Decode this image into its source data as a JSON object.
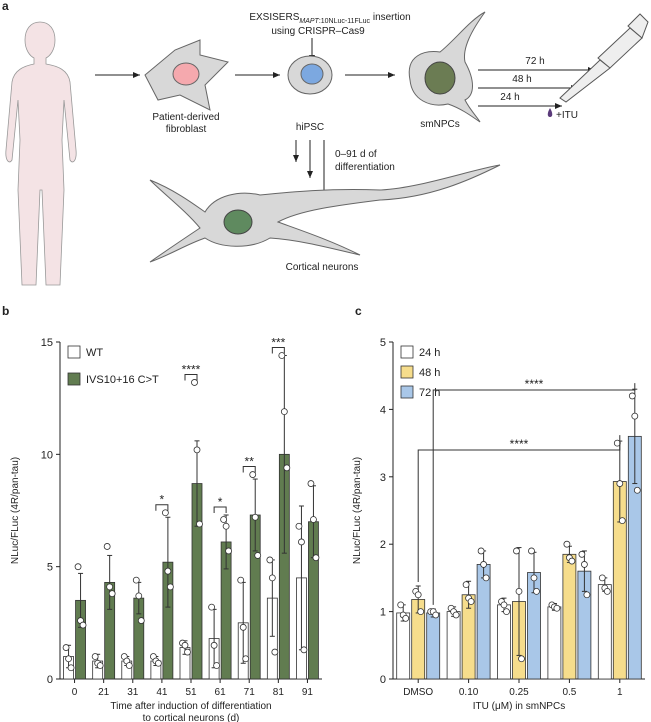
{
  "panel_labels": [
    "a",
    "b",
    "c"
  ],
  "diagram": {
    "insertion_label": {
      "main": "EXSISERS",
      "sub_italic": "MAPT",
      "sub": ":10NLuc-11FLuc",
      "rest": " insertion"
    },
    "method": "using CRISPR–Cas9",
    "fibroblast": [
      "Patient-derived",
      "fibroblast"
    ],
    "hipsc": "hiPSC",
    "smnpc": "smNPCs",
    "timepoints": [
      "72 h",
      "48 h",
      "24 h"
    ],
    "treatment": "+ITU",
    "differentiation": [
      "0–91 d of",
      "differentiation"
    ],
    "neurons": "Cortical neurons"
  },
  "chart_data": [
    {
      "type": "bar",
      "categories": [
        "0",
        "21",
        "31",
        "41",
        "51",
        "61",
        "71",
        "81",
        "91"
      ],
      "y_label": "NLuc/FLuc (4R/pan-tau)",
      "x_label": [
        "Time after induction of differentiation",
        "to cortical neurons (d)"
      ],
      "ylim": [
        0,
        15
      ],
      "yticks": [
        0,
        5,
        10,
        15
      ],
      "legend": "top-left",
      "series": [
        {
          "name": "WT",
          "color": "#ffffff",
          "values": [
            1.0,
            0.8,
            0.8,
            0.8,
            1.4,
            1.8,
            2.5,
            3.6,
            4.5
          ],
          "errors": [
            0.5,
            0.3,
            0.2,
            0.2,
            0.3,
            1.3,
            1.8,
            1.7,
            3.2
          ],
          "points": [
            [
              1.4,
              0.9,
              0.5
            ],
            [
              1.0,
              0.7,
              0.6
            ],
            [
              1.0,
              0.8,
              0.6
            ],
            [
              1.0,
              0.8,
              0.7
            ],
            [
              1.6,
              1.5,
              1.2
            ],
            [
              3.2,
              1.5,
              0.6
            ],
            [
              4.4,
              2.3,
              0.9
            ],
            [
              5.3,
              4.5,
              1.2
            ],
            [
              6.8,
              6.1,
              1.3
            ]
          ]
        },
        {
          "name": "IVS10+16 C>T",
          "color": "#617c50",
          "values": [
            3.5,
            4.3,
            3.6,
            5.2,
            8.7,
            6.1,
            7.3,
            10.0,
            7.0
          ],
          "errors": [
            1.2,
            1.2,
            0.7,
            2.0,
            1.9,
            1.2,
            1.6,
            4.4,
            1.6
          ],
          "points": [
            [
              5.0,
              2.6,
              2.4
            ],
            [
              5.9,
              4.1,
              3.8
            ],
            [
              4.4,
              3.7,
              2.6
            ],
            [
              7.4,
              4.8,
              4.1
            ],
            [
              13.2,
              10.2,
              6.9
            ],
            [
              7.1,
              6.8,
              5.7
            ],
            [
              9.1,
              7.2,
              5.5
            ],
            [
              14.4,
              11.9,
              9.4
            ],
            [
              8.7,
              7.1,
              5.4
            ]
          ]
        }
      ],
      "significance": [
        null,
        null,
        null,
        "*",
        "****",
        "*",
        "**",
        "***",
        null
      ]
    },
    {
      "type": "bar",
      "categories": [
        "DMSO",
        "0.10",
        "0.25",
        "0.5",
        "1"
      ],
      "y_label": "NLuc/FLuc (4R/pan-tau)",
      "x_label": [
        "ITU (μM) in smNPCs"
      ],
      "ylim": [
        0,
        5
      ],
      "yticks": [
        0,
        1,
        2,
        3,
        4,
        5
      ],
      "legend": "top-left",
      "series": [
        {
          "name": "24 h",
          "color": "#ffffff",
          "values": [
            0.98,
            1.0,
            1.1,
            1.07,
            1.4
          ],
          "errors": [
            0.12,
            0.07,
            0.1,
            0.05,
            0.1
          ],
          "points": [
            [
              1.1,
              0.95,
              0.9
            ],
            [
              1.05,
              1.0,
              0.95
            ],
            [
              1.15,
              1.1,
              1.0
            ],
            [
              1.1,
              1.07,
              1.05
            ],
            [
              1.5,
              1.35,
              1.3
            ]
          ]
        },
        {
          "name": "48 h",
          "color": "#f6dd8c",
          "values": [
            1.18,
            1.25,
            1.15,
            1.85,
            2.93
          ],
          "errors": [
            0.2,
            0.2,
            0.8,
            0.12,
            0.6
          ],
          "points": [
            [
              1.3,
              1.25,
              1.0
            ],
            [
              1.4,
              1.2,
              1.15
            ],
            [
              1.9,
              1.3,
              0.3
            ],
            [
              2.0,
              1.8,
              1.75
            ],
            [
              3.5,
              2.9,
              2.35
            ]
          ],
          "significance": "****"
        },
        {
          "name": "72 h",
          "color": "#a9c7e8",
          "values": [
            0.98,
            1.7,
            1.58,
            1.6,
            3.6
          ],
          "errors": [
            0.06,
            0.2,
            0.3,
            0.3,
            0.7
          ],
          "points": [
            [
              1.0,
              1.0,
              0.95
            ],
            [
              1.9,
              1.7,
              1.5
            ],
            [
              1.9,
              1.5,
              1.3
            ],
            [
              1.85,
              1.7,
              1.25
            ],
            [
              4.2,
              3.9,
              2.8
            ]
          ],
          "significance": "****"
        }
      ]
    }
  ]
}
